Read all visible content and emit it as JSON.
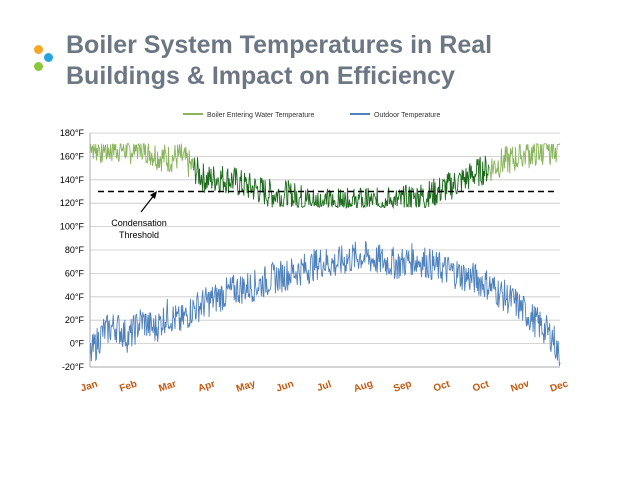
{
  "slide": {
    "title_line1": "Boiler System Temperatures in Real",
    "title_line2": "Buildings & Impact on Efficiency",
    "colors": {
      "title": "#6d7783",
      "dot_orange": "#f5a623",
      "dot_blue": "#29a3dd",
      "dot_green": "#8cc63f"
    }
  },
  "chart_data": {
    "type": "line",
    "title": "",
    "xlabel": "",
    "ylabel": "",
    "ylim": [
      -20,
      180
    ],
    "yticks": [
      -20,
      0,
      20,
      40,
      60,
      80,
      100,
      120,
      140,
      160,
      180
    ],
    "ytick_labels": [
      "-20°F",
      "0°F",
      "20°F",
      "40°F",
      "60°F",
      "80°F",
      "100°F",
      "120°F",
      "140°F",
      "160°F",
      "180°F"
    ],
    "x_tick_labels": [
      "Jan",
      "Feb",
      "Mar",
      "Apr",
      "May",
      "Jun",
      "Jul",
      "Aug",
      "Sep",
      "Oct",
      "Oct",
      "Nov",
      "Dec"
    ],
    "x_label_color": "#c55a11",
    "legend_position": "top-center",
    "grid": true,
    "x_day": [
      0,
      10,
      20,
      30,
      40,
      50,
      60,
      70,
      80,
      90,
      100,
      110,
      120,
      130,
      140,
      150,
      160,
      170,
      180,
      190,
      200,
      210,
      220,
      230,
      240,
      250,
      260,
      270,
      280,
      290,
      300,
      310,
      320,
      330,
      340,
      350,
      360,
      365
    ],
    "series": [
      {
        "name": "Boiler Entering Water Temperature",
        "color_light": "#8ab55c",
        "color_dark": "#1e6b1e",
        "values": [
          170,
          165,
          168,
          165,
          170,
          162,
          158,
          160,
          150,
          140,
          142,
          140,
          135,
          132,
          128,
          128,
          125,
          122,
          122,
          120,
          120,
          121,
          120,
          122,
          121,
          124,
          126,
          130,
          135,
          140,
          146,
          150,
          155,
          158,
          162,
          165,
          166,
          170
        ]
      },
      {
        "name": "Outdoor Temperature",
        "color": "#4f81bd",
        "values": [
          -10,
          10,
          15,
          5,
          20,
          12,
          25,
          18,
          30,
          35,
          40,
          45,
          48,
          50,
          55,
          58,
          62,
          65,
          70,
          68,
          72,
          75,
          72,
          70,
          68,
          72,
          70,
          65,
          62,
          58,
          55,
          50,
          42,
          35,
          25,
          15,
          5,
          -15
        ]
      }
    ],
    "threshold": {
      "value": 130,
      "label_line1": "Condensation",
      "label_line2": "Threshold"
    }
  }
}
